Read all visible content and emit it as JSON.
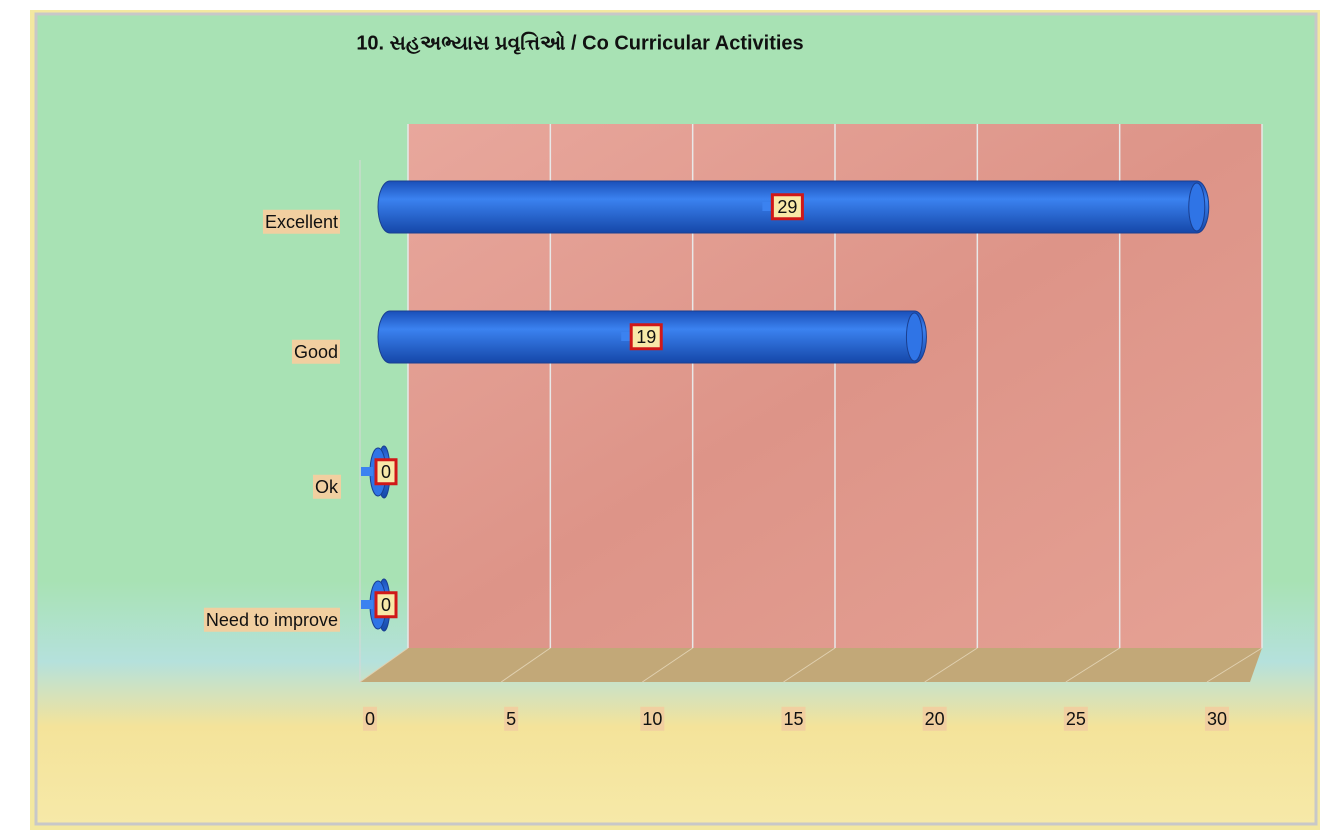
{
  "chart_data": {
    "type": "bar",
    "orientation": "horizontal",
    "title": "10. સહઅભ્યાસ પ્રવૃત્તિઓ / Co Curricular Activities",
    "categories": [
      "Excellent",
      "Good",
      "Ok",
      "Need to improve"
    ],
    "values": [
      29,
      19,
      0,
      0
    ],
    "color": "#2a6ae0",
    "xlim": [
      0,
      30
    ],
    "xticks": [
      0,
      5,
      10,
      15,
      20,
      25,
      30
    ],
    "grid": true
  }
}
